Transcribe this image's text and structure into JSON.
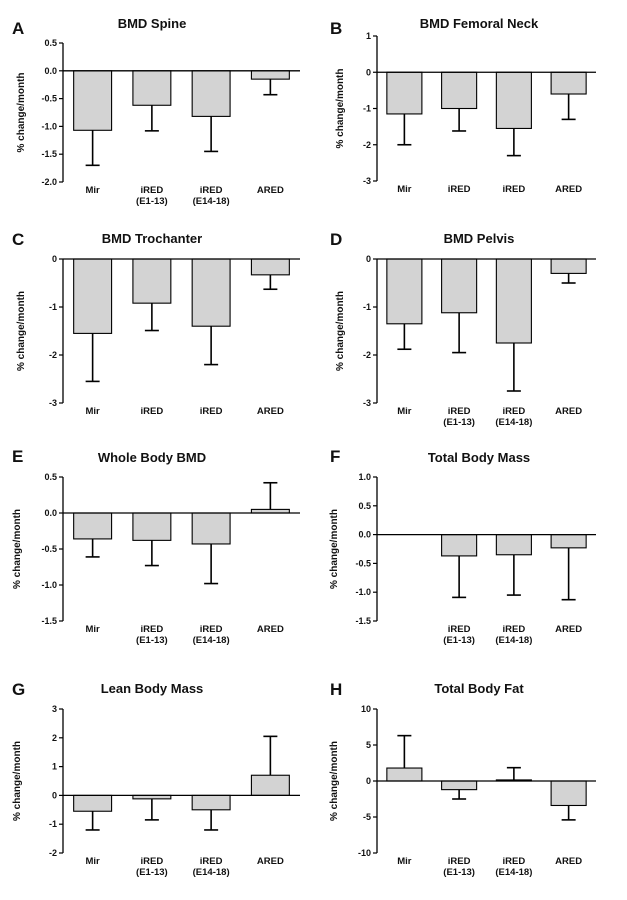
{
  "figure": {
    "panels_count": 8
  },
  "colors": {
    "bar_fill": "#d3d3d3",
    "stroke": "#000000",
    "text": "#111111"
  },
  "chart_data": [
    {
      "id": "A",
      "type": "bar",
      "title": "BMD Spine",
      "ylabel": "% change/month",
      "ylim": [
        -2.0,
        0.5
      ],
      "yticks": [
        "0.5",
        "0.0",
        "-0.5",
        "-1.0",
        "-1.5",
        "-2.0"
      ],
      "categories": [
        [
          "Mir"
        ],
        [
          "iRED",
          "(E1-13)"
        ],
        [
          "iRED",
          "(E14-18)"
        ],
        [
          "ARED"
        ]
      ],
      "values": [
        -1.07,
        -0.62,
        -0.82,
        -0.15
      ],
      "errors": [
        0.63,
        0.46,
        0.63,
        0.28
      ]
    },
    {
      "id": "B",
      "type": "bar",
      "title": "BMD Femoral Neck",
      "ylabel": "% change/month",
      "ylim": [
        -3,
        1
      ],
      "yticks": [
        "1",
        "0",
        "-1",
        "-2",
        "-3"
      ],
      "categories": [
        [
          "Mir"
        ],
        [
          "iRED"
        ],
        [
          "iRED"
        ],
        [
          "ARED"
        ]
      ],
      "values": [
        -1.15,
        -1.0,
        -1.55,
        -0.6
      ],
      "errors": [
        0.85,
        0.62,
        0.75,
        0.7
      ]
    },
    {
      "id": "C",
      "type": "bar",
      "title": "BMD Trochanter",
      "ylabel": "% change/month",
      "ylim": [
        -3,
        0
      ],
      "yticks": [
        "0",
        "-1",
        "-2",
        "-3"
      ],
      "categories": [
        [
          "Mir"
        ],
        [
          "iRED"
        ],
        [
          "iRED"
        ],
        [
          "ARED"
        ]
      ],
      "values": [
        -1.55,
        -0.92,
        -1.4,
        -0.33
      ],
      "errors": [
        1.0,
        0.57,
        0.8,
        0.3
      ]
    },
    {
      "id": "D",
      "type": "bar",
      "title": "BMD Pelvis",
      "ylabel": "% change/month",
      "ylim": [
        -3,
        0
      ],
      "yticks": [
        "0",
        "-1",
        "-2",
        "-3"
      ],
      "categories": [
        [
          "Mir"
        ],
        [
          "iRED",
          "(E1-13)"
        ],
        [
          "iRED",
          "(E14-18)"
        ],
        [
          "ARED"
        ]
      ],
      "values": [
        -1.35,
        -1.12,
        -1.75,
        -0.3
      ],
      "errors": [
        0.53,
        0.83,
        1.0,
        0.2
      ]
    },
    {
      "id": "E",
      "type": "bar",
      "title": "Whole Body BMD",
      "ylabel": "% change/month",
      "ylim": [
        -1.5,
        0.5
      ],
      "yticks": [
        "0.5",
        "0.0",
        "-0.5",
        "-1.0",
        "-1.5"
      ],
      "categories": [
        [
          "Mir"
        ],
        [
          "iRED",
          "(E1-13)"
        ],
        [
          "iRED",
          "(E14-18)"
        ],
        [
          "ARED"
        ]
      ],
      "values": [
        -0.36,
        -0.38,
        -0.43,
        0.05
      ],
      "errors": [
        0.25,
        0.35,
        0.55,
        0.37
      ]
    },
    {
      "id": "F",
      "type": "bar",
      "title": "Total Body Mass",
      "ylabel": "% change/month",
      "ylim": [
        -1.5,
        1.0
      ],
      "yticks": [
        "1.0",
        "0.5",
        "0.0",
        "-0.5",
        "-1.0",
        "-1.5"
      ],
      "categories": [
        [],
        [
          "iRED",
          "(E1-13)"
        ],
        [
          "iRED",
          "(E14-18)"
        ],
        [
          "ARED"
        ]
      ],
      "values": [
        null,
        -0.37,
        -0.35,
        -0.23
      ],
      "errors": [
        null,
        0.72,
        0.7,
        0.9
      ]
    },
    {
      "id": "G",
      "type": "bar",
      "title": "Lean Body Mass",
      "ylabel": "% change/month",
      "ylim": [
        -2,
        3
      ],
      "yticks": [
        "3",
        "2",
        "1",
        "0",
        "-1",
        "-2"
      ],
      "categories": [
        [
          "Mir"
        ],
        [
          "iRED",
          "(E1-13)"
        ],
        [
          "iRED",
          "(E14-18)"
        ],
        [
          "ARED"
        ]
      ],
      "values": [
        -0.55,
        -0.12,
        -0.5,
        0.7
      ],
      "errors": [
        0.65,
        0.73,
        0.7,
        1.35
      ]
    },
    {
      "id": "H",
      "type": "bar",
      "title": "Total Body Fat",
      "ylabel": "% change/month",
      "ylim": [
        -10,
        10
      ],
      "yticks": [
        "10",
        "5",
        "0",
        "-5",
        "-10"
      ],
      "categories": [
        [
          "Mir"
        ],
        [
          "iRED",
          "(E1-13)"
        ],
        [
          "iRED",
          "(E14-18)"
        ],
        [
          "ARED"
        ]
      ],
      "values": [
        1.8,
        -1.2,
        0.15,
        -3.4
      ],
      "errors": [
        4.5,
        1.3,
        1.7,
        2.0
      ]
    }
  ]
}
